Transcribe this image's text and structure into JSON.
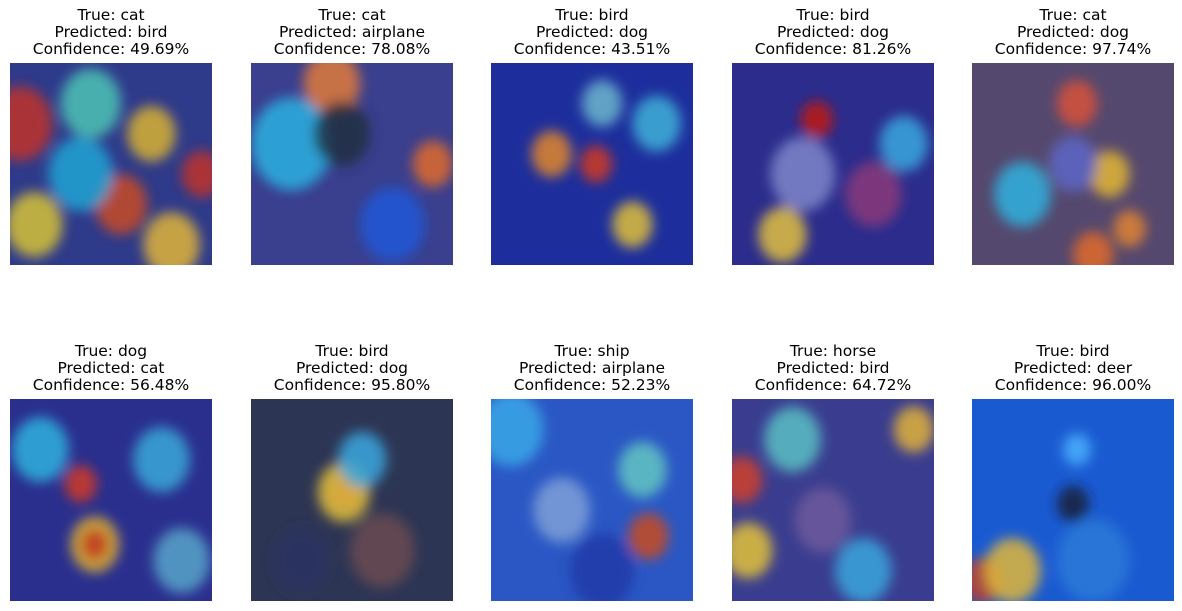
{
  "figure": {
    "panels": [
      {
        "true_label": "True: cat",
        "predicted_label": "Predicted: bird",
        "confidence": "Confidence: 49.69%",
        "base": "#2e3a8a",
        "blobs": [
          [
            0.05,
            0.3,
            0.16,
            "#c0322a"
          ],
          [
            0.12,
            0.8,
            0.14,
            "#d6c237"
          ],
          [
            0.55,
            0.7,
            0.13,
            "#c84a25"
          ],
          [
            0.7,
            0.35,
            0.12,
            "#d8b232"
          ],
          [
            0.95,
            0.55,
            0.1,
            "#c0322a"
          ],
          [
            0.35,
            0.55,
            0.16,
            "#1ea3d4"
          ],
          [
            0.8,
            0.9,
            0.14,
            "#e0b438"
          ],
          [
            0.4,
            0.2,
            0.15,
            "#4cc3b5"
          ]
        ]
      },
      {
        "true_label": "True: cat",
        "predicted_label": "Predicted: airplane",
        "confidence": "Confidence: 78.08%",
        "base": "#3a3f8e",
        "blobs": [
          [
            0.4,
            0.1,
            0.14,
            "#e07a3a"
          ],
          [
            0.9,
            0.5,
            0.1,
            "#e06a2a"
          ],
          [
            0.2,
            0.4,
            0.2,
            "#2cb0e0"
          ],
          [
            0.7,
            0.8,
            0.16,
            "#1f58d8"
          ],
          [
            0.45,
            0.35,
            0.14,
            "#22303f"
          ]
        ]
      },
      {
        "true_label": "True: bird",
        "predicted_label": "Predicted: dog",
        "confidence": "Confidence: 43.51%",
        "base": "#1d2e9c",
        "blobs": [
          [
            0.52,
            0.5,
            0.08,
            "#d23a1e"
          ],
          [
            0.3,
            0.45,
            0.1,
            "#e3862c"
          ],
          [
            0.7,
            0.8,
            0.1,
            "#e0c03a"
          ],
          [
            0.82,
            0.3,
            0.12,
            "#3fb0d7"
          ],
          [
            0.55,
            0.2,
            0.1,
            "#6cb6ce"
          ]
        ]
      },
      {
        "true_label": "True: bird",
        "predicted_label": "Predicted: dog",
        "confidence": "Confidence: 81.26%",
        "base": "#2b2c8c",
        "blobs": [
          [
            0.42,
            0.28,
            0.08,
            "#c11a10"
          ],
          [
            0.25,
            0.85,
            0.12,
            "#e2c13f"
          ],
          [
            0.7,
            0.65,
            0.14,
            "#8a3a7a"
          ],
          [
            0.35,
            0.55,
            0.16,
            "#7f86c9"
          ],
          [
            0.85,
            0.4,
            0.12,
            "#3aa7de"
          ]
        ]
      },
      {
        "true_label": "True: cat",
        "predicted_label": "Predicted: dog",
        "confidence": "Confidence: 97.74%",
        "base": "#55486e",
        "blobs": [
          [
            0.52,
            0.2,
            0.1,
            "#d8523a"
          ],
          [
            0.68,
            0.55,
            0.1,
            "#e3b632"
          ],
          [
            0.78,
            0.82,
            0.08,
            "#e08232"
          ],
          [
            0.6,
            0.95,
            0.1,
            "#e06a2a"
          ],
          [
            0.25,
            0.65,
            0.14,
            "#2fb2de"
          ],
          [
            0.5,
            0.5,
            0.12,
            "#5d66c7"
          ]
        ]
      },
      {
        "true_label": "True: dog",
        "predicted_label": "Predicted: cat",
        "confidence": "Confidence: 56.48%",
        "base": "#2a2f8e",
        "blobs": [
          [
            0.35,
            0.42,
            0.08,
            "#d23a24"
          ],
          [
            0.42,
            0.72,
            0.12,
            "#e3b632"
          ],
          [
            0.42,
            0.72,
            0.07,
            "#c2381e"
          ],
          [
            0.75,
            0.3,
            0.14,
            "#3aa8d8"
          ],
          [
            0.15,
            0.25,
            0.14,
            "#2fb2de"
          ],
          [
            0.85,
            0.8,
            0.14,
            "#57a5c9"
          ]
        ]
      },
      {
        "true_label": "True: bird",
        "predicted_label": "Predicted: dog",
        "confidence": "Confidence: 95.80%",
        "base": "#2d3554",
        "blobs": [
          [
            0.46,
            0.46,
            0.07,
            "#c7261a"
          ],
          [
            0.46,
            0.46,
            0.13,
            "#e2c03c"
          ],
          [
            0.55,
            0.3,
            0.12,
            "#3aa7de"
          ],
          [
            0.65,
            0.75,
            0.16,
            "#6a4a52"
          ],
          [
            0.25,
            0.8,
            0.14,
            "#2a3462"
          ]
        ]
      },
      {
        "true_label": "True: ship",
        "predicted_label": "Predicted: airplane",
        "confidence": "Confidence: 52.23%",
        "base": "#2a57c4",
        "blobs": [
          [
            0.1,
            0.15,
            0.16,
            "#3aa7e8"
          ],
          [
            0.78,
            0.68,
            0.1,
            "#c94a1e"
          ],
          [
            0.35,
            0.55,
            0.14,
            "#7fa0d8"
          ],
          [
            0.55,
            0.85,
            0.16,
            "#1c3aa8"
          ],
          [
            0.75,
            0.35,
            0.12,
            "#63c6c2"
          ]
        ]
      },
      {
        "true_label": "True: horse",
        "predicted_label": "Predicted: bird",
        "confidence": "Confidence: 64.72%",
        "base": "#3a3d8f",
        "blobs": [
          [
            0.05,
            0.4,
            0.1,
            "#d0402a"
          ],
          [
            0.08,
            0.75,
            0.12,
            "#e3c23a"
          ],
          [
            0.9,
            0.15,
            0.1,
            "#e2b23a"
          ],
          [
            0.45,
            0.6,
            0.14,
            "#6f5a9c"
          ],
          [
            0.65,
            0.85,
            0.14,
            "#3aa6dc"
          ],
          [
            0.3,
            0.2,
            0.14,
            "#59c0c4"
          ]
        ]
      },
      {
        "true_label": "True: bird",
        "predicted_label": "Predicted: deer",
        "confidence": "Confidence: 96.00%",
        "base": "#1a5ad1",
        "blobs": [
          [
            0.05,
            0.9,
            0.1,
            "#c0402a"
          ],
          [
            0.2,
            0.85,
            0.14,
            "#e0b638"
          ],
          [
            0.52,
            0.25,
            0.07,
            "#4ab0ff"
          ],
          [
            0.5,
            0.52,
            0.08,
            "#1a1f3a"
          ],
          [
            0.6,
            0.8,
            0.18,
            "#2a7ad8"
          ]
        ]
      }
    ]
  }
}
